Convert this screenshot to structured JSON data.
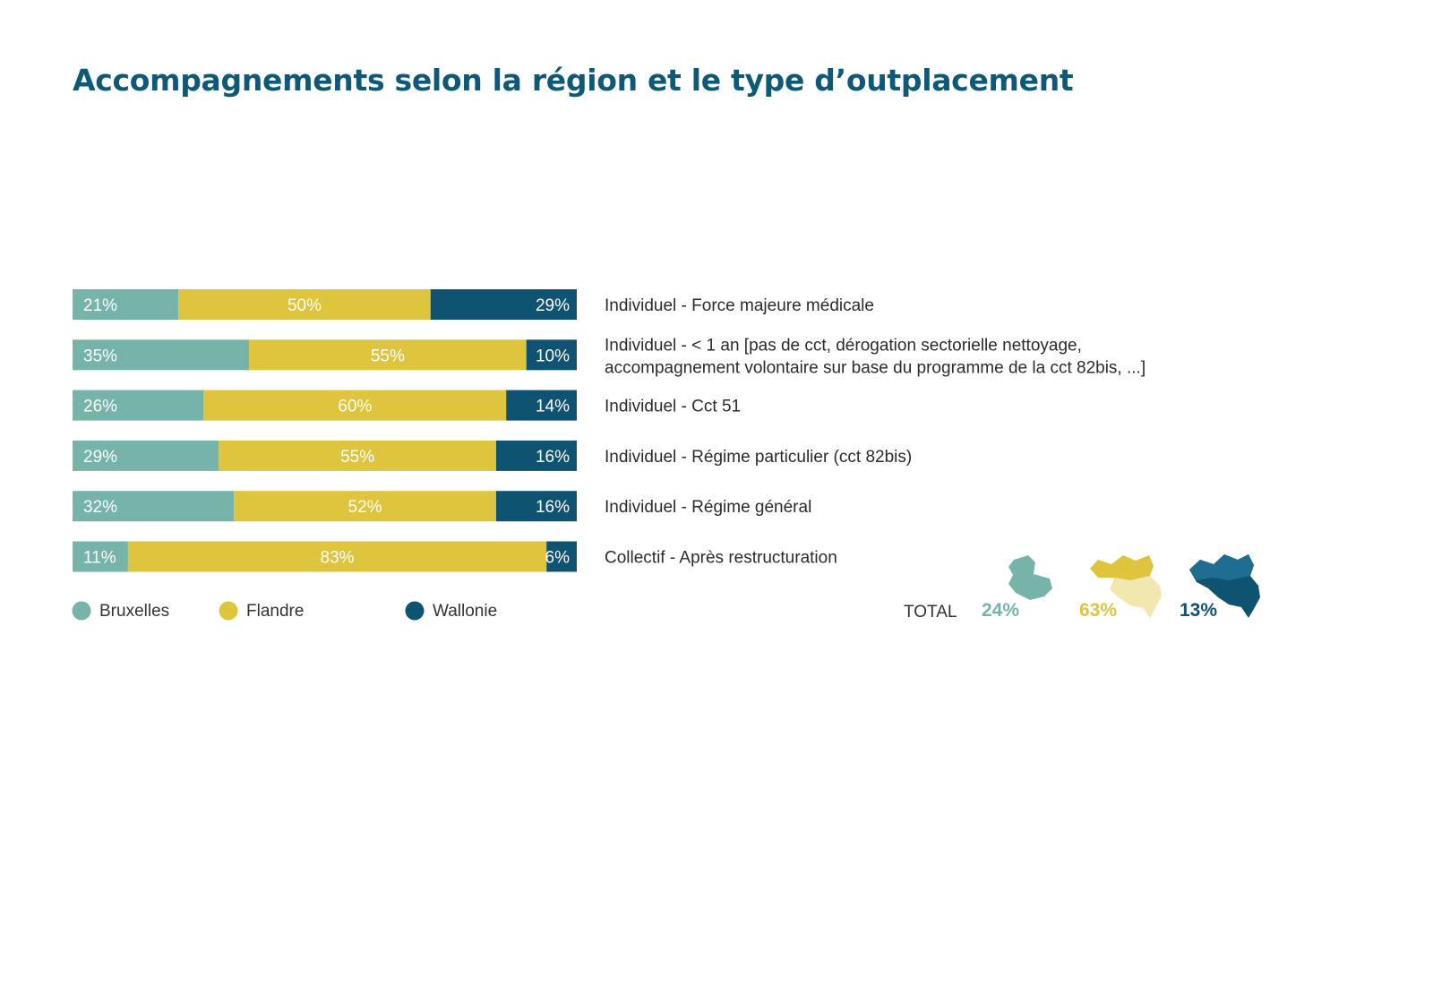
{
  "chart_data": {
    "type": "bar",
    "orientation": "horizontal",
    "stacked": "percent",
    "title": "Accompagnements selon la région et le type d’outplacement",
    "xlim": [
      0,
      100
    ],
    "grid": false,
    "legend_position": "bottom-left",
    "categories": [
      [
        "Individuel - Force majeure médicale"
      ],
      [
        "Individuel - < 1 an [pas de cct, dérogation sectorielle nettoyage,",
        "accompagnement volontaire sur base du programme de la cct 82bis, ...]"
      ],
      [
        "Individuel - Cct 51"
      ],
      [
        "Individuel - Régime particulier (cct 82bis)"
      ],
      [
        "Individuel - Régime général"
      ],
      [
        "Collectif - Après restructuration"
      ]
    ],
    "series": [
      {
        "name": "Bruxelles",
        "color": "#76b4aa",
        "values": [
          21,
          35,
          26,
          29,
          32,
          11
        ]
      },
      {
        "name": "Flandre",
        "color": "#dfc43d",
        "values": [
          50,
          55,
          60,
          55,
          52,
          83
        ]
      },
      {
        "name": "Wallonie",
        "color": "#0f5373",
        "values": [
          29,
          10,
          14,
          16,
          16,
          6
        ]
      }
    ],
    "total": {
      "label": "TOTAL",
      "items": [
        {
          "region": "Bruxelles",
          "value": "24%",
          "color": "#76b4aa",
          "icon": "brussels-map-icon"
        },
        {
          "region": "Flandre",
          "value": "63%",
          "color": "#dfc43d",
          "icon": "flanders-map-icon"
        },
        {
          "region": "Wallonie",
          "value": "13%",
          "color": "#0f5373",
          "icon": "wallonia-map-icon"
        }
      ]
    }
  }
}
